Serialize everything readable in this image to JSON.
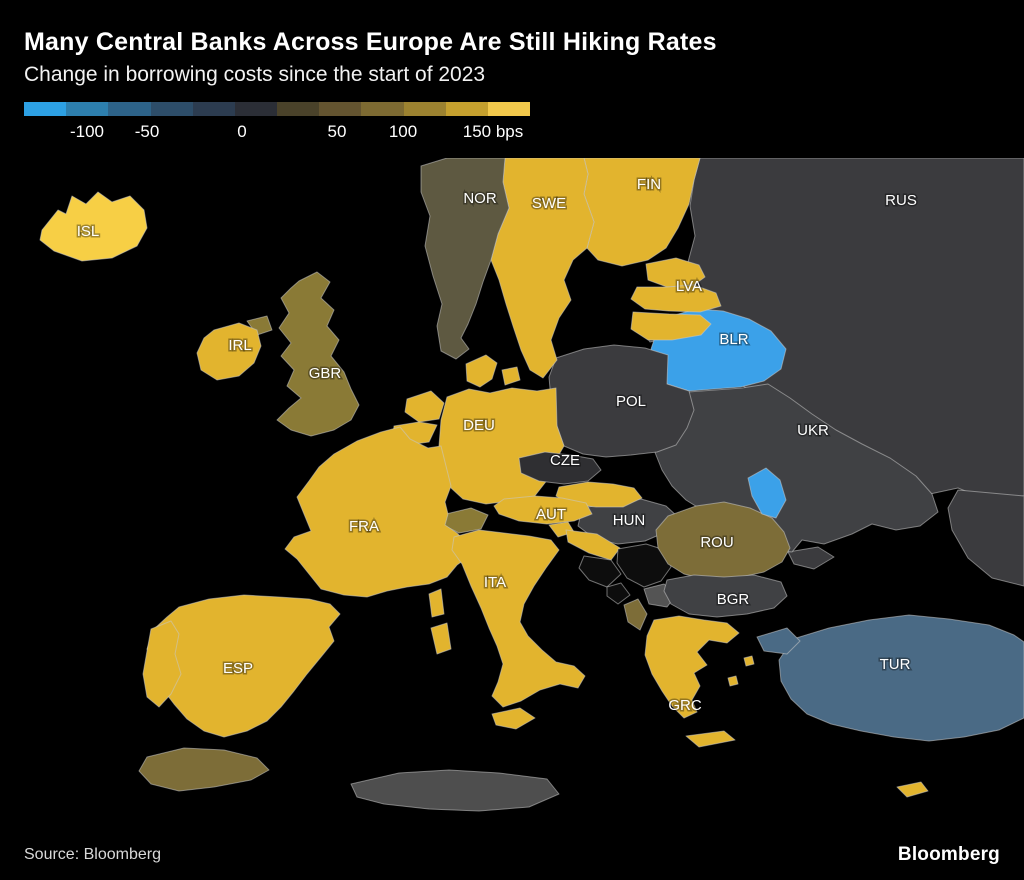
{
  "header": {
    "title": "Many Central Banks Across Europe Are Still Hiking Rates",
    "subtitle": "Change in borrowing costs since the start of 2023"
  },
  "legend": {
    "tick_labels": [
      "-100",
      "-50",
      "0",
      "50",
      "100",
      "150 bps"
    ],
    "colors": [
      "#2da0e3",
      "#2d7fae",
      "#2d6389",
      "#2d4d69",
      "#2c3c50",
      "#2b2e36",
      "#4a422a",
      "#645430",
      "#7d6a32",
      "#9c8230",
      "#c5a02e",
      "#f2c94c"
    ]
  },
  "footer": {
    "source": "Source: Bloomberg",
    "brand": "Bloomberg"
  },
  "map": {
    "countries": [
      {
        "code": "RUS",
        "label": "RUS",
        "color": "#3b3b3e",
        "approx_change_bps": 0
      },
      {
        "code": "UKR",
        "label": "UKR",
        "color": "#404144",
        "approx_change_bps": 0
      },
      {
        "code": "BLR",
        "label": "BLR",
        "color": "#3ba1e9",
        "approx_change_bps": -100
      },
      {
        "code": "POL",
        "label": "POL",
        "color": "#3b3b3e",
        "approx_change_bps": 0
      },
      {
        "code": "EST",
        "label": "",
        "color": "#e2b42e",
        "approx_change_bps": 100
      },
      {
        "code": "LVA",
        "label": "LVA",
        "color": "#e2b42e",
        "approx_change_bps": 100
      },
      {
        "code": "LTU",
        "label": "",
        "color": "#e2b42e",
        "approx_change_bps": 100
      },
      {
        "code": "FIN",
        "label": "FIN",
        "color": "#e2b42e",
        "approx_change_bps": 100
      },
      {
        "code": "SWE",
        "label": "SWE",
        "color": "#e2b42e",
        "approx_change_bps": 100
      },
      {
        "code": "NOR",
        "label": "NOR",
        "color": "#5e5941",
        "approx_change_bps": 50
      },
      {
        "code": "DNK",
        "label": "",
        "color": "#e2b42e",
        "approx_change_bps": 100
      },
      {
        "code": "DEU",
        "label": "DEU",
        "color": "#e2b42e",
        "approx_change_bps": 100
      },
      {
        "code": "NLD",
        "label": "",
        "color": "#e2b42e",
        "approx_change_bps": 100
      },
      {
        "code": "BEL",
        "label": "",
        "color": "#e2b42e",
        "approx_change_bps": 100
      },
      {
        "code": "CZE",
        "label": "CZE",
        "color": "#2f2f32",
        "approx_change_bps": 0
      },
      {
        "code": "HUN",
        "label": "HUN",
        "color": "#404144",
        "approx_change_bps": 0
      },
      {
        "code": "SVK",
        "label": "",
        "color": "#e2b42e",
        "approx_change_bps": 100
      },
      {
        "code": "AUT",
        "label": "AUT",
        "color": "#e2b42e",
        "approx_change_bps": 100
      },
      {
        "code": "CHE",
        "label": "",
        "color": "#8a7a36",
        "approx_change_bps": 75
      },
      {
        "code": "FRA",
        "label": "FRA",
        "color": "#e2b42e",
        "approx_change_bps": 100
      },
      {
        "code": "ESP",
        "label": "ESP",
        "color": "#e2b42e",
        "approx_change_bps": 100
      },
      {
        "code": "PRT",
        "label": "",
        "color": "#e2b42e",
        "approx_change_bps": 100
      },
      {
        "code": "ITA",
        "label": "ITA",
        "color": "#e2b42e",
        "approx_change_bps": 100
      },
      {
        "code": "SVN",
        "label": "",
        "color": "#e2b42e",
        "approx_change_bps": 100
      },
      {
        "code": "HRV",
        "label": "",
        "color": "#e2b42e",
        "approx_change_bps": 100
      },
      {
        "code": "BIH",
        "label": "",
        "color": "#0d0d0d",
        "approx_change_bps": null
      },
      {
        "code": "SRB",
        "label": "",
        "color": "#0d0d0d",
        "approx_change_bps": null
      },
      {
        "code": "MNE",
        "label": "",
        "color": "#0d0d0d",
        "approx_change_bps": null
      },
      {
        "code": "ALB",
        "label": "",
        "color": "#7d6d38",
        "approx_change_bps": 50
      },
      {
        "code": "MKD",
        "label": "",
        "color": "#545454",
        "approx_change_bps": 25
      },
      {
        "code": "ROU",
        "label": "ROU",
        "color": "#7d6d38",
        "approx_change_bps": 50
      },
      {
        "code": "MDA",
        "label": "",
        "color": "#3ba1e9",
        "approx_change_bps": -100
      },
      {
        "code": "BGR",
        "label": "BGR",
        "color": "#404144",
        "approx_change_bps": 0
      },
      {
        "code": "GRC",
        "label": "GRC",
        "color": "#e2b42e",
        "approx_change_bps": 100
      },
      {
        "code": "TUR",
        "label": "TUR",
        "color": "#4a6a85",
        "approx_change_bps": -50
      },
      {
        "code": "MAR",
        "label": "",
        "color": "#7d6d38",
        "approx_change_bps": 50
      },
      {
        "code": "DZA",
        "label": "",
        "color": "#4e4e4e",
        "approx_change_bps": null
      },
      {
        "code": "CYP",
        "label": "",
        "color": "#e2b42e",
        "approx_change_bps": 100
      },
      {
        "code": "GBR",
        "label": "GBR",
        "color": "#8a7a36",
        "approx_change_bps": 75
      },
      {
        "code": "IRL",
        "label": "IRL",
        "color": "#e2b42e",
        "approx_change_bps": 100
      },
      {
        "code": "ISL",
        "label": "ISL",
        "color": "#f7cf45",
        "approx_change_bps": 150
      }
    ]
  },
  "chart_data": {
    "type": "choropleth",
    "title": "Many Central Banks Across Europe Are Still Hiking Rates",
    "subtitle": "Change in borrowing costs since the start of 2023",
    "unit": "bps",
    "legend_ticks": [
      -100,
      -50,
      0,
      50,
      100,
      150
    ],
    "legend_position": "top-left",
    "values": {
      "ISL": 150,
      "NOR": 50,
      "SWE": 100,
      "FIN": 100,
      "RUS": 0,
      "EST": 100,
      "LVA": 100,
      "LTU": 100,
      "BLR": -100,
      "POL": 0,
      "UKR": 0,
      "IRL": 100,
      "GBR": 75,
      "DNK": 100,
      "DEU": 100,
      "NLD": 100,
      "BEL": 100,
      "CZE": 0,
      "SVK": 100,
      "AUT": 100,
      "CHE": 75,
      "FRA": 100,
      "ESP": 100,
      "PRT": 100,
      "ITA": 100,
      "SVN": 100,
      "HRV": 100,
      "ALB": 50,
      "MKD": 25,
      "HUN": 0,
      "ROU": 50,
      "MDA": -100,
      "BGR": 0,
      "GRC": 100,
      "TUR": -50,
      "MAR": 50,
      "CYP": 100
    }
  }
}
